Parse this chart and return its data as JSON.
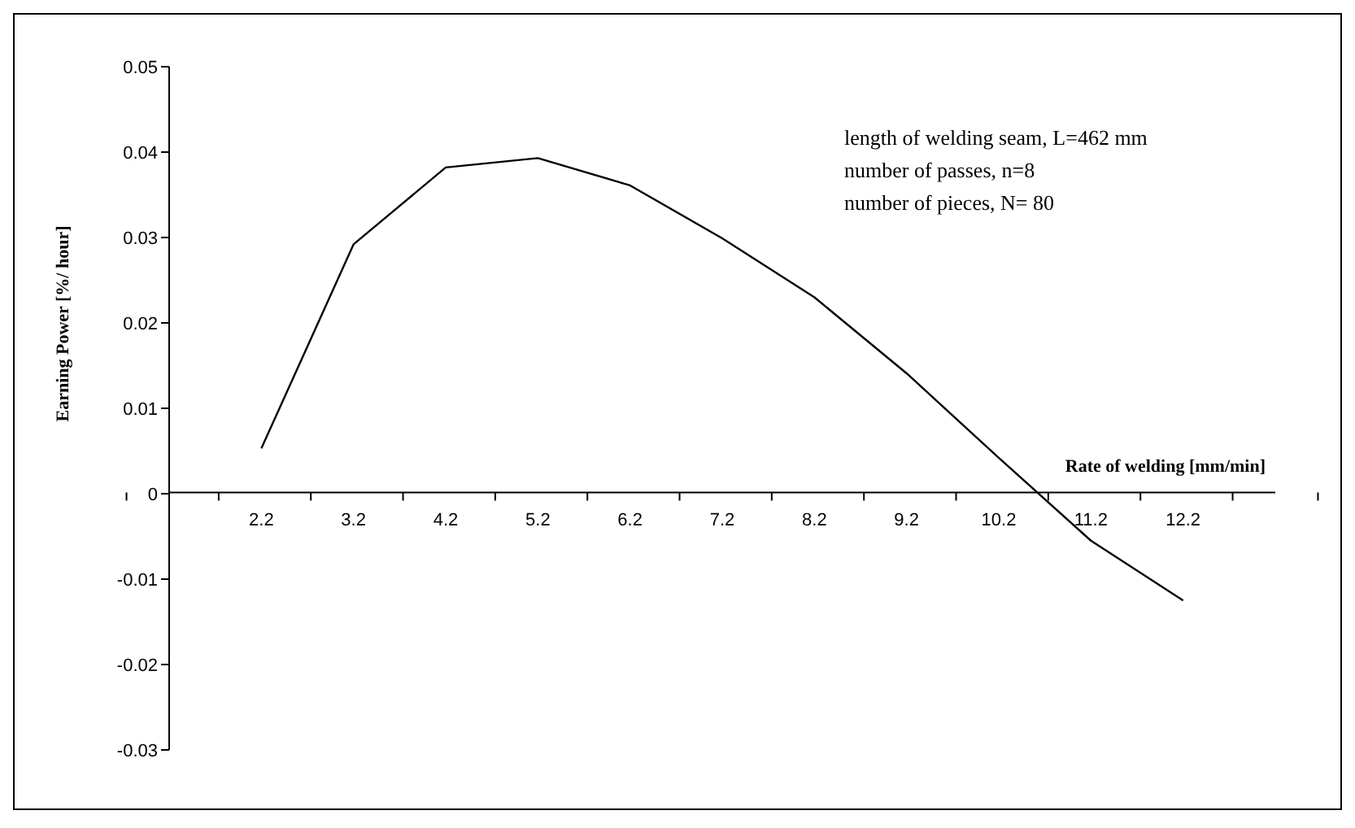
{
  "chart_data": {
    "type": "line",
    "xlabel": "Rate of welding [mm/min]",
    "ylabel": "Earning Power [%/ hour]",
    "annotations": [
      "length of welding seam, L=462 mm",
      "number of passes, n=8",
      "number of pieces, N= 80"
    ],
    "categories": [
      null,
      "2.2",
      "3.2",
      "4.2",
      "5.2",
      "6.2",
      "7.2",
      "8.2",
      "9.2",
      "10.2",
      "11.2",
      "12.2",
      null
    ],
    "values": [
      null,
      0.0053,
      0.0292,
      0.0382,
      0.0393,
      0.0361,
      0.0299,
      0.023,
      0.0141,
      0.0042,
      -0.0055,
      -0.0125,
      null
    ],
    "color": "#000000",
    "ylim": [
      -0.03,
      0.05
    ],
    "yticks": [
      -0.03,
      -0.02,
      -0.01,
      0,
      0.01,
      0.02,
      0.03,
      0.04,
      0.05
    ]
  }
}
